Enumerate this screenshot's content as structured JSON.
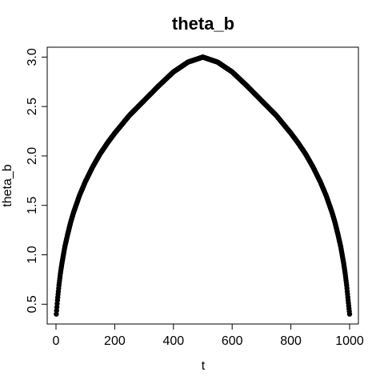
{
  "chart_data": {
    "type": "scatter",
    "title": "theta_b",
    "xlabel": "t",
    "ylabel": "theta_b",
    "xlim": [
      -30,
      1030
    ],
    "ylim": [
      0.3,
      3.1
    ],
    "xticks": [
      "0",
      "200",
      "400",
      "600",
      "800",
      "1000"
    ],
    "xtick_values": [
      0,
      200,
      400,
      600,
      800,
      1000
    ],
    "yticks": [
      "0.5",
      "1.0",
      "1.5",
      "2.0",
      "2.5",
      "3.0"
    ],
    "ytick_values": [
      0.5,
      1.0,
      1.5,
      2.0,
      2.5,
      3.0
    ],
    "grid": false,
    "series": [
      {
        "marker": "filled-circle",
        "color": "#000000",
        "x": [
          1,
          5,
          10,
          15,
          20,
          30,
          40,
          50,
          60,
          80,
          100,
          125,
          150,
          175,
          200,
          250,
          300,
          350,
          400,
          450,
          500,
          550,
          600,
          650,
          700,
          750,
          800,
          825,
          850,
          875,
          900,
          920,
          940,
          950,
          960,
          970,
          980,
          985,
          990,
          995,
          1000
        ],
        "y": [
          0.4,
          0.54,
          0.69,
          0.81,
          0.91,
          1.08,
          1.21,
          1.33,
          1.43,
          1.6,
          1.74,
          1.89,
          2.02,
          2.13,
          2.23,
          2.41,
          2.56,
          2.71,
          2.85,
          2.95,
          3.0,
          2.95,
          2.85,
          2.71,
          2.56,
          2.41,
          2.23,
          2.13,
          2.02,
          1.89,
          1.74,
          1.6,
          1.43,
          1.33,
          1.21,
          1.08,
          0.91,
          0.81,
          0.69,
          0.54,
          0.4
        ]
      }
    ]
  }
}
